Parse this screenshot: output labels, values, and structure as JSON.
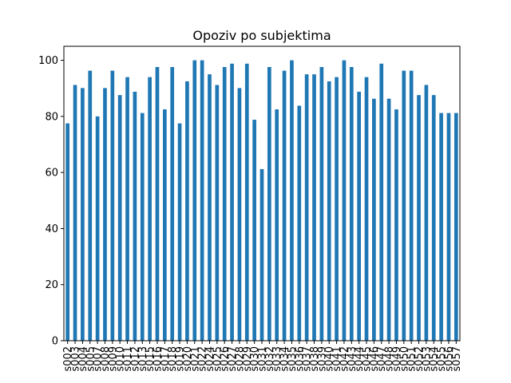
{
  "chart_data": {
    "type": "bar",
    "title": "Opoziv po subjektima",
    "xlabel": "",
    "ylabel": "",
    "ylim": [
      0,
      105
    ],
    "yticks": [
      0,
      20,
      40,
      60,
      80,
      100
    ],
    "grid": false,
    "bar_color": "#1f77b4",
    "categories": [
      "s002",
      "s003",
      "s004",
      "s005",
      "s007",
      "s008",
      "s009",
      "s010",
      "s011",
      "s012",
      "s013",
      "s015",
      "s016",
      "s017",
      "s018",
      "s019",
      "s020",
      "s021",
      "s022",
      "s024",
      "s025",
      "s026",
      "s027",
      "s028",
      "s029",
      "s030",
      "s031",
      "s032",
      "s033",
      "s034",
      "s035",
      "s036",
      "s037",
      "s038",
      "s039",
      "s040",
      "s041",
      "s042",
      "s043",
      "s044",
      "s045",
      "s046",
      "s047",
      "s048",
      "s049",
      "s050",
      "s051",
      "s052",
      "s053",
      "s054",
      "s055",
      "s056",
      "s057"
    ],
    "values": [
      77.5,
      91.2,
      90.1,
      96.3,
      80.0,
      90.1,
      96.3,
      87.6,
      94.0,
      88.8,
      81.2,
      94.0,
      97.6,
      82.5,
      97.6,
      77.5,
      92.5,
      100,
      100,
      95.0,
      91.2,
      97.6,
      98.8,
      90.1,
      98.8,
      78.8,
      61.2,
      97.6,
      82.5,
      96.3,
      100,
      83.8,
      95.0,
      95.0,
      97.6,
      92.5,
      94.0,
      100,
      97.6,
      88.8,
      94.0,
      86.3,
      98.8,
      86.3,
      82.5,
      96.3,
      96.3,
      87.6,
      91.2,
      87.6,
      81.2,
      81.2,
      81.2
    ]
  }
}
